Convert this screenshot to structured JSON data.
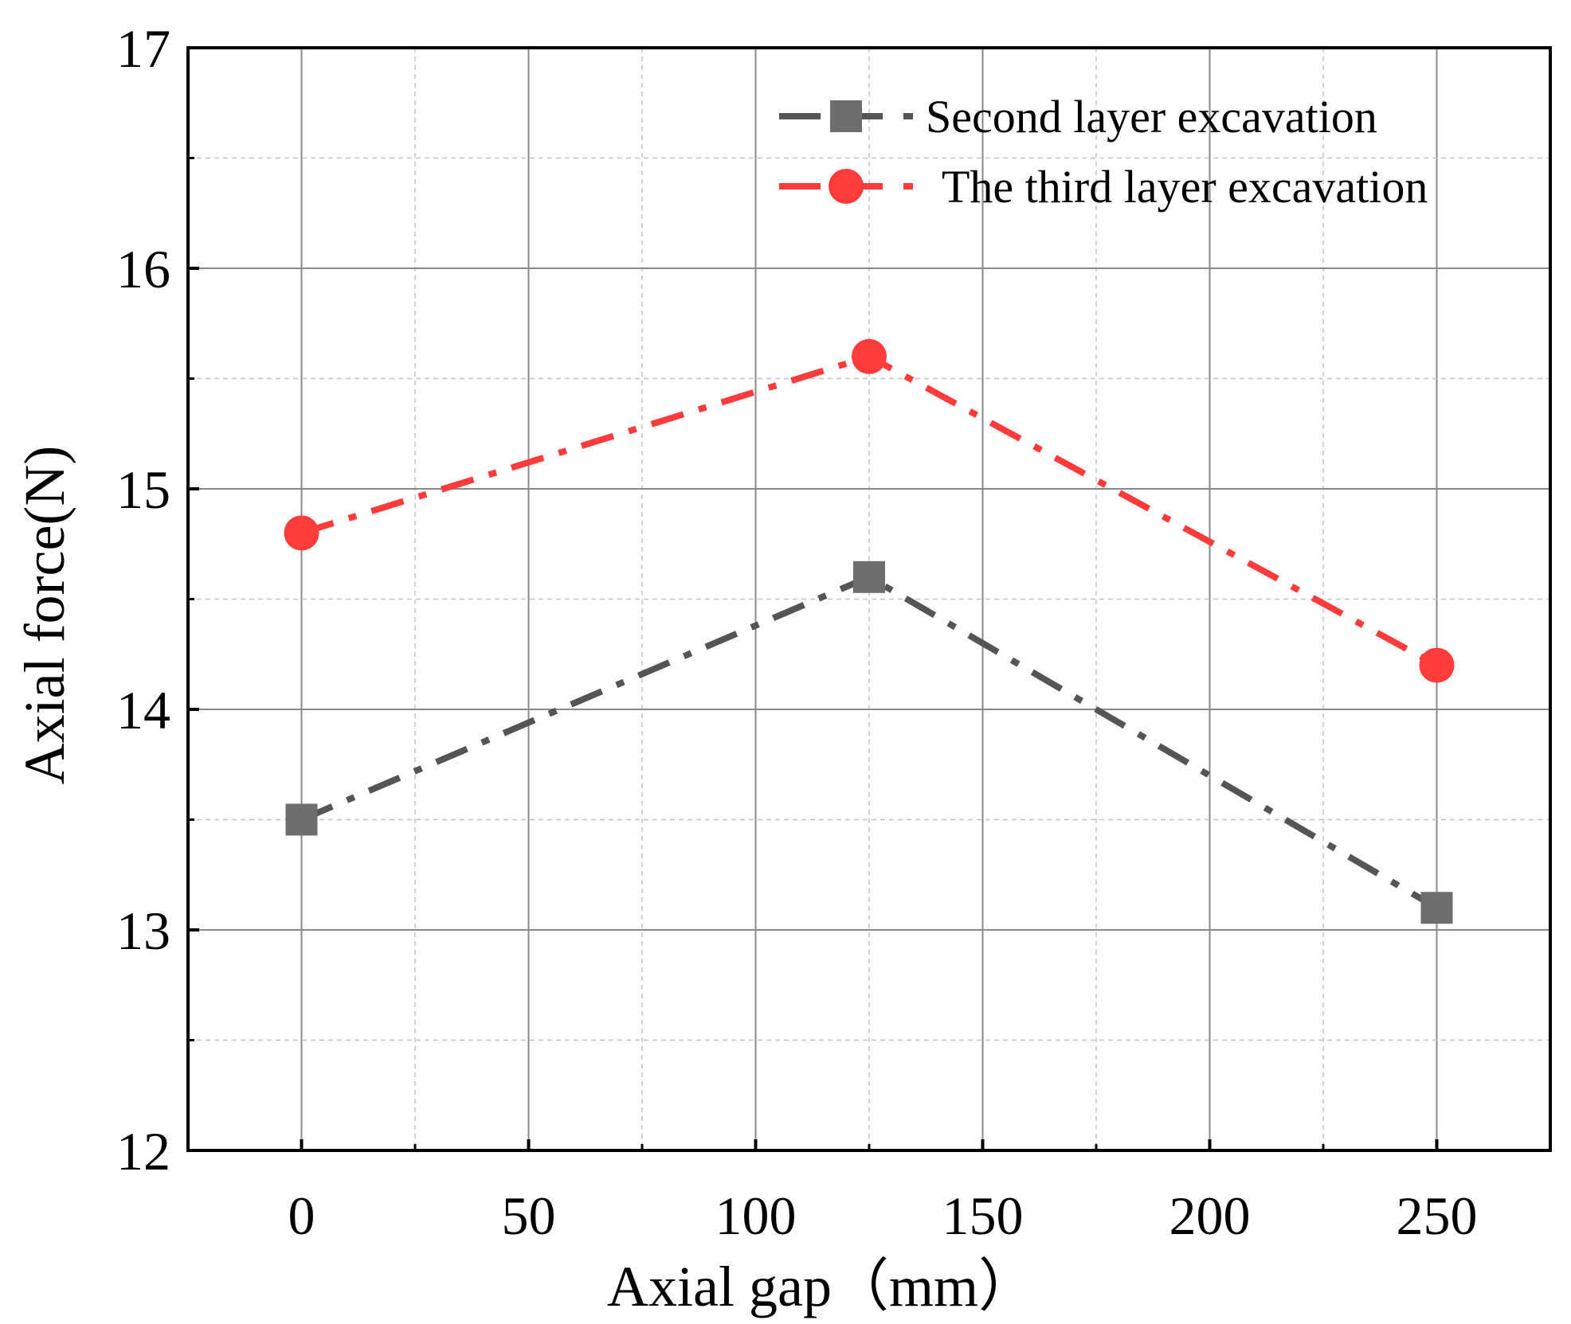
{
  "chart_data": {
    "type": "line",
    "xlabel": "Axial gap（mm）",
    "ylabel": "Axial force(N)",
    "xlim": [
      -25,
      275
    ],
    "ylim": [
      12,
      17
    ],
    "xticks": [
      0,
      50,
      100,
      150,
      200,
      250
    ],
    "yticks": [
      12,
      13,
      14,
      15,
      16,
      17
    ],
    "grid": true,
    "legend_position": "top-right",
    "x": [
      0,
      125,
      250
    ],
    "series": [
      {
        "name": "Second layer excavation",
        "values": [
          13.5,
          14.6,
          13.1
        ],
        "color": "#555555",
        "marker_color": "#6e6e6e",
        "marker": "square",
        "line_style": "dash-dot"
      },
      {
        "name": "The third layer excavation",
        "values": [
          14.8,
          15.6,
          14.2
        ],
        "color": "#ff3b3b",
        "marker_color": "#ff3b3b",
        "marker": "circle",
        "line_style": "dash-dot"
      }
    ]
  }
}
